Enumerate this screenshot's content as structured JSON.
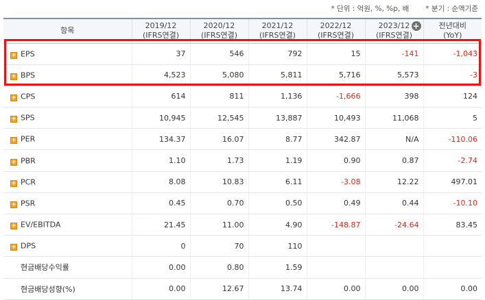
{
  "notes": {
    "unit": "* 단위 : 억원, %, %p, 배",
    "period": "* 분기 : 순액기준"
  },
  "header": {
    "item_label": "항목",
    "columns": [
      {
        "year": "2019/12",
        "basis": "(IFRS연결)"
      },
      {
        "year": "2020/12",
        "basis": "(IFRS연결)"
      },
      {
        "year": "2021/12",
        "basis": "(IFRS연결)"
      },
      {
        "year": "2022/12",
        "basis": "(IFRS연결)"
      },
      {
        "year": "2023/12",
        "basis": "(IFRS연결)"
      }
    ],
    "yoy_line1": "전년대비",
    "yoy_line2": "(YoY)",
    "expand_glyph": "+"
  },
  "rows": [
    {
      "name": "EPS",
      "expandable": true,
      "values": [
        "37",
        "546",
        "792",
        "15",
        "-141",
        "-1,043"
      ]
    },
    {
      "name": "BPS",
      "expandable": true,
      "values": [
        "4,523",
        "5,080",
        "5,811",
        "5,716",
        "5,573",
        "-3"
      ]
    },
    {
      "name": "CPS",
      "expandable": true,
      "values": [
        "614",
        "811",
        "1,136",
        "-1,666",
        "398",
        "124"
      ]
    },
    {
      "name": "SPS",
      "expandable": true,
      "values": [
        "10,945",
        "12,545",
        "13,887",
        "10,493",
        "11,068",
        "5"
      ]
    },
    {
      "name": "PER",
      "expandable": true,
      "values": [
        "134.37",
        "16.07",
        "8.77",
        "342.87",
        "N/A",
        "-110.06"
      ]
    },
    {
      "name": "PBR",
      "expandable": true,
      "values": [
        "1.10",
        "1.73",
        "1.19",
        "0.90",
        "0.87",
        "-2.74"
      ]
    },
    {
      "name": "PCR",
      "expandable": true,
      "values": [
        "8.08",
        "10.83",
        "6.11",
        "-3.08",
        "12.22",
        "497.01"
      ]
    },
    {
      "name": "PSR",
      "expandable": true,
      "values": [
        "0.45",
        "0.70",
        "0.50",
        "0.49",
        "0.44",
        "-10.10"
      ]
    },
    {
      "name": "EV/EBITDA",
      "expandable": true,
      "values": [
        "21.45",
        "11.00",
        "4.90",
        "-148.87",
        "-24.64",
        "83.45"
      ]
    },
    {
      "name": "DPS",
      "expandable": true,
      "values": [
        "0",
        "70",
        "110",
        "",
        "",
        ""
      ]
    },
    {
      "name": "현금배당수익률",
      "expandable": false,
      "values": [
        "0.00",
        "0.80",
        "1.59",
        "",
        "",
        ""
      ]
    },
    {
      "name": "현금배당성향(%)",
      "expandable": false,
      "values": [
        "0.00",
        "12.67",
        "13.74",
        "0.00",
        "0.00",
        "0.00"
      ]
    }
  ],
  "colors": {
    "negative": "#e0291a",
    "highlight_border": "#ee1111",
    "toggle_icon": "#f6a11d"
  }
}
